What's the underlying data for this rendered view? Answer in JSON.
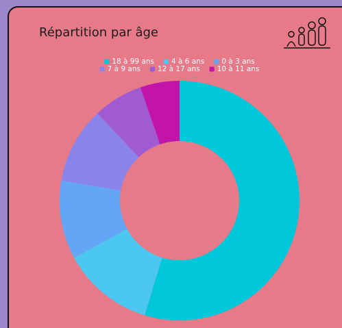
{
  "chart_data": {
    "type": "donut",
    "title": "Répartition par âge",
    "categories": [
      "18 à 99 ans",
      "4 à 6 ans",
      "0 à 3 ans",
      "7 à 9 ans",
      "12 à 17 ans",
      "10 à 11 ans"
    ],
    "values": [
      54.7,
      12.4,
      10.6,
      10.3,
      6.7,
      5.3
    ],
    "colors": [
      "#00c8da",
      "#4cc7f2",
      "#63a6f6",
      "#8a84ea",
      "#a05ad2",
      "#c214a8"
    ]
  }
}
